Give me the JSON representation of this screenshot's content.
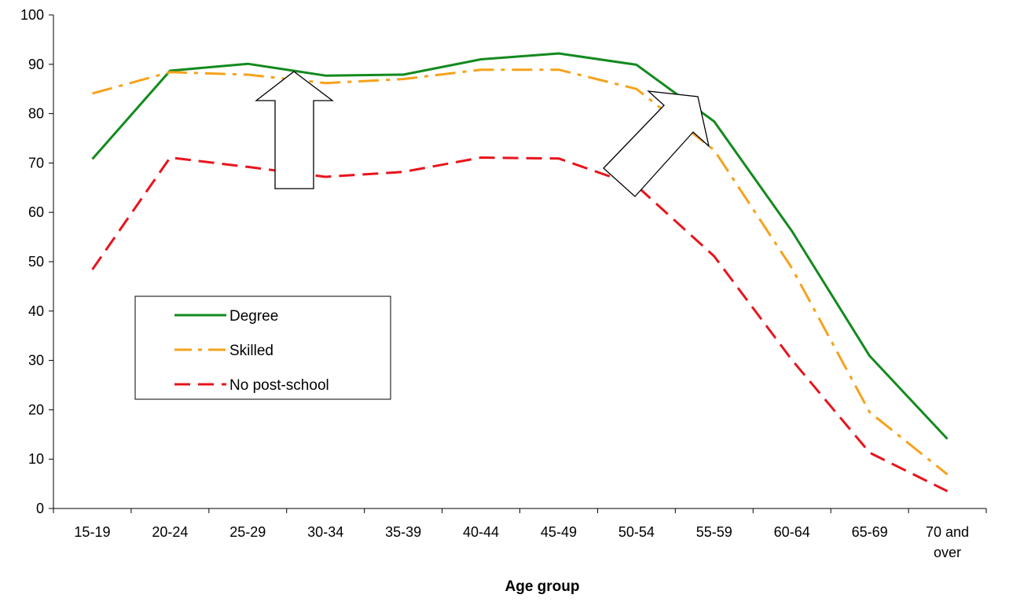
{
  "chart_data": {
    "type": "line",
    "title": "",
    "xlabel": "Age group",
    "ylabel": "",
    "ylim": [
      0,
      100
    ],
    "yticks": [
      0,
      10,
      20,
      30,
      40,
      50,
      60,
      70,
      80,
      90,
      100
    ],
    "grid": false,
    "legend_position": "left-middle",
    "categories": [
      [
        "15-19"
      ],
      [
        "20-24"
      ],
      [
        "25-29"
      ],
      [
        "30-34"
      ],
      [
        "35-39"
      ],
      [
        "40-44"
      ],
      [
        "45-49"
      ],
      [
        "50-54"
      ],
      [
        "55-59"
      ],
      [
        "60-64"
      ],
      [
        "65-69"
      ],
      [
        "70 and",
        "over"
      ]
    ],
    "series": [
      {
        "name": "Degree",
        "color": "#138A1E",
        "style": "solid",
        "values": [
          70.8,
          88.7,
          90.1,
          87.7,
          87.9,
          91.0,
          92.2,
          89.9,
          78.4,
          56.2,
          30.9,
          14.1
        ]
      },
      {
        "name": "Skilled",
        "color": "#F5A21B",
        "style": "dashdot",
        "values": [
          84.1,
          88.4,
          87.9,
          86.2,
          87.0,
          88.9,
          88.9,
          85.0,
          72.6,
          48.7,
          19.5,
          6.9
        ]
      },
      {
        "name": "No post-school",
        "color": "#E8141B",
        "style": "dashed",
        "values": [
          48.4,
          71.1,
          69.2,
          67.2,
          68.2,
          71.1,
          70.9,
          65.4,
          51.1,
          30.1,
          11.3,
          3.5
        ]
      }
    ],
    "annotations": [
      {
        "type": "arrow",
        "direction": "up",
        "between": [
          "25-29",
          "30-34"
        ]
      },
      {
        "type": "arrow",
        "direction": "up-right",
        "between": [
          "45-49",
          "55-59"
        ]
      }
    ]
  }
}
